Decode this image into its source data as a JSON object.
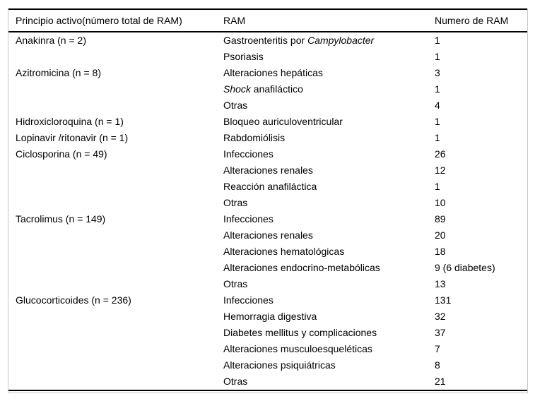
{
  "colors": {
    "text": "#000000",
    "rule": "#000000",
    "frame": "#c9c9c9",
    "background": "#ffffff"
  },
  "table": {
    "headers": [
      "Principio activo(número total de RAM)",
      "RAM",
      "Numero de RAM"
    ],
    "rows": [
      {
        "drug": "Anakinra (n = 2)",
        "ram": [
          {
            "t": "Gastroenteritis por ",
            "i": false
          },
          {
            "t": "Campylobacter",
            "i": true
          }
        ],
        "n": "1"
      },
      {
        "drug": "",
        "ram": [
          {
            "t": "Psoriasis",
            "i": false
          }
        ],
        "n": "1"
      },
      {
        "drug": "Azitromicina (n = 8)",
        "ram": [
          {
            "t": "Alteraciones hepáticas",
            "i": false
          }
        ],
        "n": "3"
      },
      {
        "drug": "",
        "ram": [
          {
            "t": "Shock",
            "i": true
          },
          {
            "t": " anafiláctico",
            "i": false
          }
        ],
        "n": "1"
      },
      {
        "drug": "",
        "ram": [
          {
            "t": "Otras",
            "i": false
          }
        ],
        "n": "4"
      },
      {
        "drug": "Hidroxicloroquina (n = 1)",
        "ram": [
          {
            "t": "Bloqueo auriculoventricular",
            "i": false
          }
        ],
        "n": "1"
      },
      {
        "drug": "Lopinavir /ritonavir (n = 1)",
        "ram": [
          {
            "t": "Rabdomiólisis",
            "i": false
          }
        ],
        "n": "1"
      },
      {
        "drug": "Ciclosporina (n = 49)",
        "ram": [
          {
            "t": "Infecciones",
            "i": false
          }
        ],
        "n": "26"
      },
      {
        "drug": "",
        "ram": [
          {
            "t": "Alteraciones renales",
            "i": false
          }
        ],
        "n": "12"
      },
      {
        "drug": "",
        "ram": [
          {
            "t": "Reacción anafiláctica",
            "i": false
          }
        ],
        "n": "1"
      },
      {
        "drug": "",
        "ram": [
          {
            "t": "Otras",
            "i": false
          }
        ],
        "n": "10"
      },
      {
        "drug": "Tacrolimus (n = 149)",
        "ram": [
          {
            "t": "Infecciones",
            "i": false
          }
        ],
        "n": "89"
      },
      {
        "drug": "",
        "ram": [
          {
            "t": "Alteraciones renales",
            "i": false
          }
        ],
        "n": "20"
      },
      {
        "drug": "",
        "ram": [
          {
            "t": "Alteraciones hematológicas",
            "i": false
          }
        ],
        "n": "18"
      },
      {
        "drug": "",
        "ram": [
          {
            "t": "Alteraciones endocrino-metabólicas",
            "i": false
          }
        ],
        "n": "9 (6 diabetes)"
      },
      {
        "drug": "",
        "ram": [
          {
            "t": "Otras",
            "i": false
          }
        ],
        "n": "13"
      },
      {
        "drug": "Glucocorticoides (n = 236)",
        "ram": [
          {
            "t": "Infecciones",
            "i": false
          }
        ],
        "n": "131"
      },
      {
        "drug": "",
        "ram": [
          {
            "t": "Hemorragia digestiva",
            "i": false
          }
        ],
        "n": "32"
      },
      {
        "drug": "",
        "ram": [
          {
            "t": "Diabetes mellitus y complicaciones",
            "i": false
          }
        ],
        "n": "37"
      },
      {
        "drug": "",
        "ram": [
          {
            "t": "Alteraciones musculoesqueléticas",
            "i": false
          }
        ],
        "n": "7"
      },
      {
        "drug": "",
        "ram": [
          {
            "t": "Alteraciones psiquiátricas",
            "i": false
          }
        ],
        "n": "8"
      },
      {
        "drug": "",
        "ram": [
          {
            "t": "Otras",
            "i": false
          }
        ],
        "n": "21"
      }
    ]
  }
}
